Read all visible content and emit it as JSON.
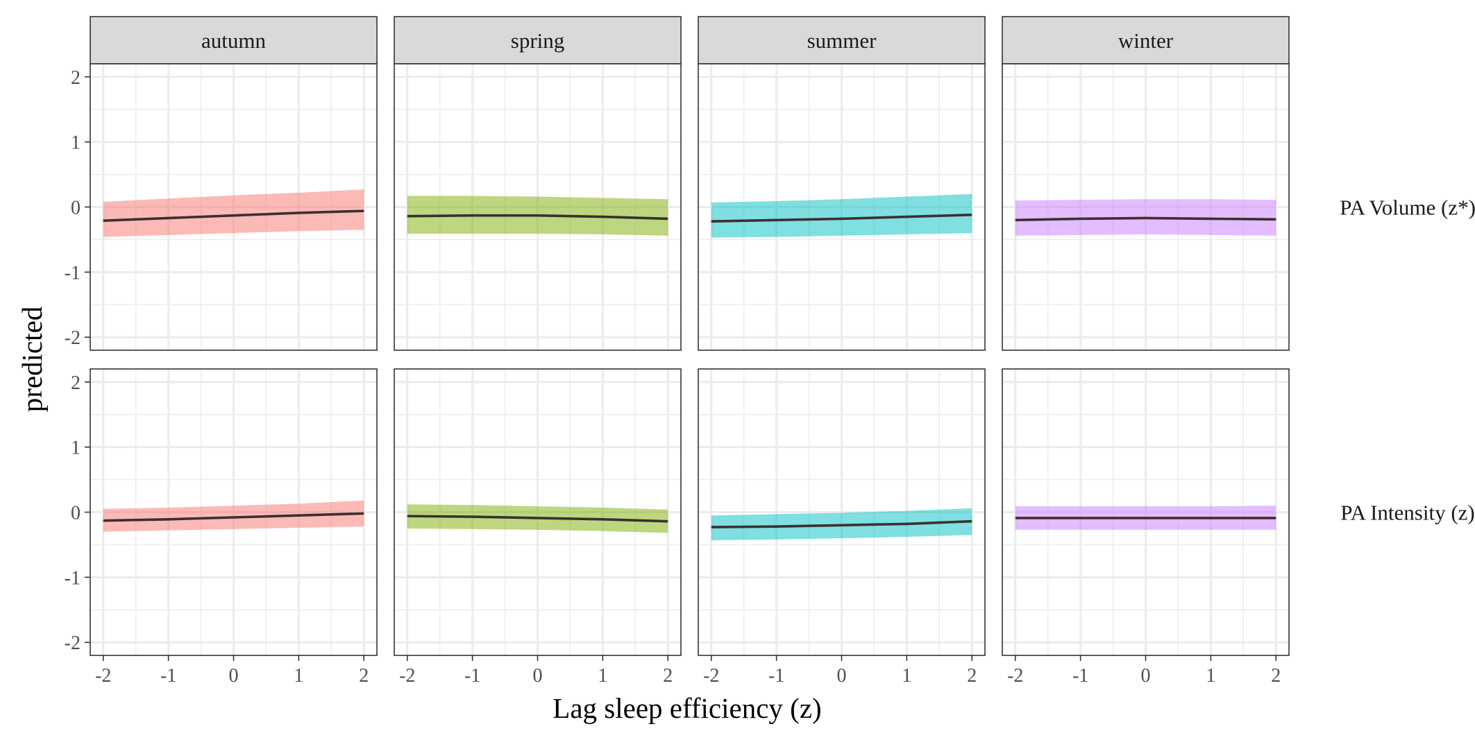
{
  "chart_data": {
    "type": "line",
    "xlabel": "Lag sleep efficiency (z)",
    "ylabel": "predicted",
    "xlim": [
      -2.2,
      2.2
    ],
    "ylim": [
      -2.2,
      2.2
    ],
    "x_ticks": [
      -2,
      -1,
      0,
      1,
      2
    ],
    "y_ticks": [
      -2,
      -1,
      0,
      1,
      2
    ],
    "x_tick_labels": [
      "-2",
      "-1",
      "0",
      "1",
      "2"
    ],
    "y_tick_labels": [
      "-2",
      "-1",
      "0",
      "1",
      "2"
    ],
    "grid": true,
    "legend": "none",
    "x": [
      -2,
      -1,
      0,
      1,
      2
    ],
    "columns": [
      "autumn",
      "spring",
      "summer",
      "winter"
    ],
    "rows": [
      "PA Volume (z*)",
      "PA Intensity (z)"
    ],
    "colors": {
      "autumn": "#F8766D",
      "spring": "#7CAE00",
      "summer": "#00BFC4",
      "winter": "#C77CFF",
      "line": "#3a3030",
      "strip": "#d9d9d9",
      "grid": "#ebebeb"
    },
    "panels": [
      {
        "row": "PA Volume (z*)",
        "column": "autumn",
        "fit": [
          -0.21,
          -0.17,
          -0.13,
          -0.09,
          -0.06
        ],
        "lower": [
          -0.46,
          -0.43,
          -0.4,
          -0.37,
          -0.35
        ],
        "upper": [
          0.08,
          0.13,
          0.18,
          0.22,
          0.27
        ]
      },
      {
        "row": "PA Volume (z*)",
        "column": "spring",
        "fit": [
          -0.14,
          -0.13,
          -0.13,
          -0.15,
          -0.18
        ],
        "lower": [
          -0.41,
          -0.41,
          -0.41,
          -0.42,
          -0.44
        ],
        "upper": [
          0.17,
          0.17,
          0.16,
          0.14,
          0.12
        ]
      },
      {
        "row": "PA Volume (z*)",
        "column": "summer",
        "fit": [
          -0.22,
          -0.2,
          -0.18,
          -0.15,
          -0.12
        ],
        "lower": [
          -0.47,
          -0.46,
          -0.44,
          -0.42,
          -0.4
        ],
        "upper": [
          0.07,
          0.09,
          0.12,
          0.16,
          0.2
        ]
      },
      {
        "row": "PA Volume (z*)",
        "column": "winter",
        "fit": [
          -0.2,
          -0.18,
          -0.17,
          -0.18,
          -0.19
        ],
        "lower": [
          -0.44,
          -0.43,
          -0.42,
          -0.43,
          -0.44
        ],
        "upper": [
          0.1,
          0.11,
          0.12,
          0.12,
          0.11
        ]
      },
      {
        "row": "PA Intensity (z)",
        "column": "autumn",
        "fit": [
          -0.13,
          -0.11,
          -0.08,
          -0.05,
          -0.02
        ],
        "lower": [
          -0.3,
          -0.28,
          -0.26,
          -0.24,
          -0.22
        ],
        "upper": [
          0.05,
          0.07,
          0.1,
          0.13,
          0.18
        ]
      },
      {
        "row": "PA Intensity (z)",
        "column": "spring",
        "fit": [
          -0.06,
          -0.07,
          -0.09,
          -0.11,
          -0.14
        ],
        "lower": [
          -0.25,
          -0.26,
          -0.27,
          -0.29,
          -0.32
        ],
        "upper": [
          0.12,
          0.11,
          0.09,
          0.07,
          0.04
        ]
      },
      {
        "row": "PA Intensity (z)",
        "column": "summer",
        "fit": [
          -0.23,
          -0.22,
          -0.2,
          -0.18,
          -0.14
        ],
        "lower": [
          -0.43,
          -0.42,
          -0.4,
          -0.38,
          -0.35
        ],
        "upper": [
          -0.05,
          -0.03,
          -0.01,
          0.02,
          0.06
        ]
      },
      {
        "row": "PA Intensity (z)",
        "column": "winter",
        "fit": [
          -0.09,
          -0.09,
          -0.09,
          -0.09,
          -0.09
        ],
        "lower": [
          -0.27,
          -0.27,
          -0.27,
          -0.27,
          -0.27
        ],
        "upper": [
          0.09,
          0.09,
          0.09,
          0.09,
          0.1
        ]
      }
    ]
  }
}
